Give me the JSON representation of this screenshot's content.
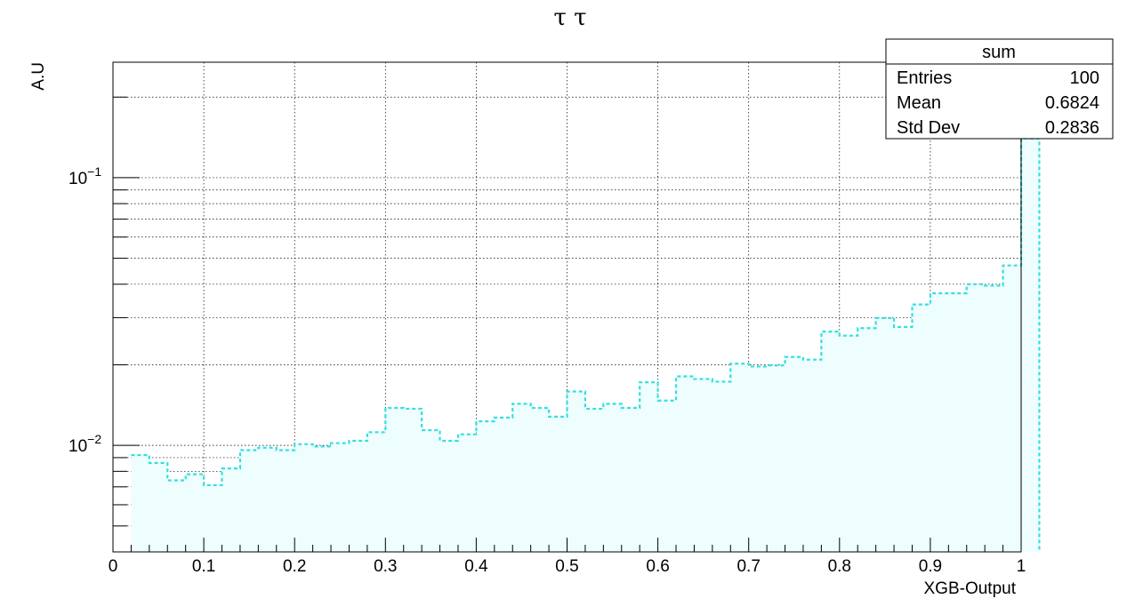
{
  "chart_data": {
    "type": "histogram",
    "title": "τ τ",
    "xlabel": "XGB-Output",
    "ylabel": "A.U",
    "xlim": [
      0,
      1
    ],
    "ylim": [
      0.004,
      0.27
    ],
    "yscale": "log",
    "grid": true,
    "x_ticks": [
      "0",
      "0.1",
      "0.2",
      "0.3",
      "0.4",
      "0.5",
      "0.6",
      "0.7",
      "0.8",
      "0.9",
      "1"
    ],
    "y_ticks": [
      {
        "value": 0.01,
        "base": "10",
        "exp": "−2"
      },
      {
        "value": 0.1,
        "base": "10",
        "exp": "−1"
      }
    ],
    "bin_width": 0.02,
    "bins_start": 0.02,
    "values": [
      0.0092,
      0.0086,
      0.0074,
      0.0078,
      0.0071,
      0.0082,
      0.0096,
      0.0098,
      0.0096,
      0.0101,
      0.0099,
      0.0102,
      0.0104,
      0.0112,
      0.0138,
      0.0137,
      0.0114,
      0.0104,
      0.011,
      0.0123,
      0.0127,
      0.0143,
      0.0138,
      0.0128,
      0.0159,
      0.0137,
      0.0143,
      0.0138,
      0.0172,
      0.0147,
      0.0181,
      0.0177,
      0.0173,
      0.0202,
      0.0197,
      0.0199,
      0.0214,
      0.0209,
      0.0266,
      0.0257,
      0.0274,
      0.0299,
      0.0277,
      0.0336,
      0.037,
      0.037,
      0.04,
      0.0395,
      0.047,
      0.14
    ],
    "line_color": "#33e0e0",
    "fill_color": "#eefdfd",
    "stats_box": {
      "title": "sum",
      "rows": [
        {
          "label": "Entries",
          "value": "100"
        },
        {
          "label": "Mean",
          "value": "0.6824"
        },
        {
          "label": "Std Dev",
          "value": "0.2836"
        }
      ]
    }
  }
}
